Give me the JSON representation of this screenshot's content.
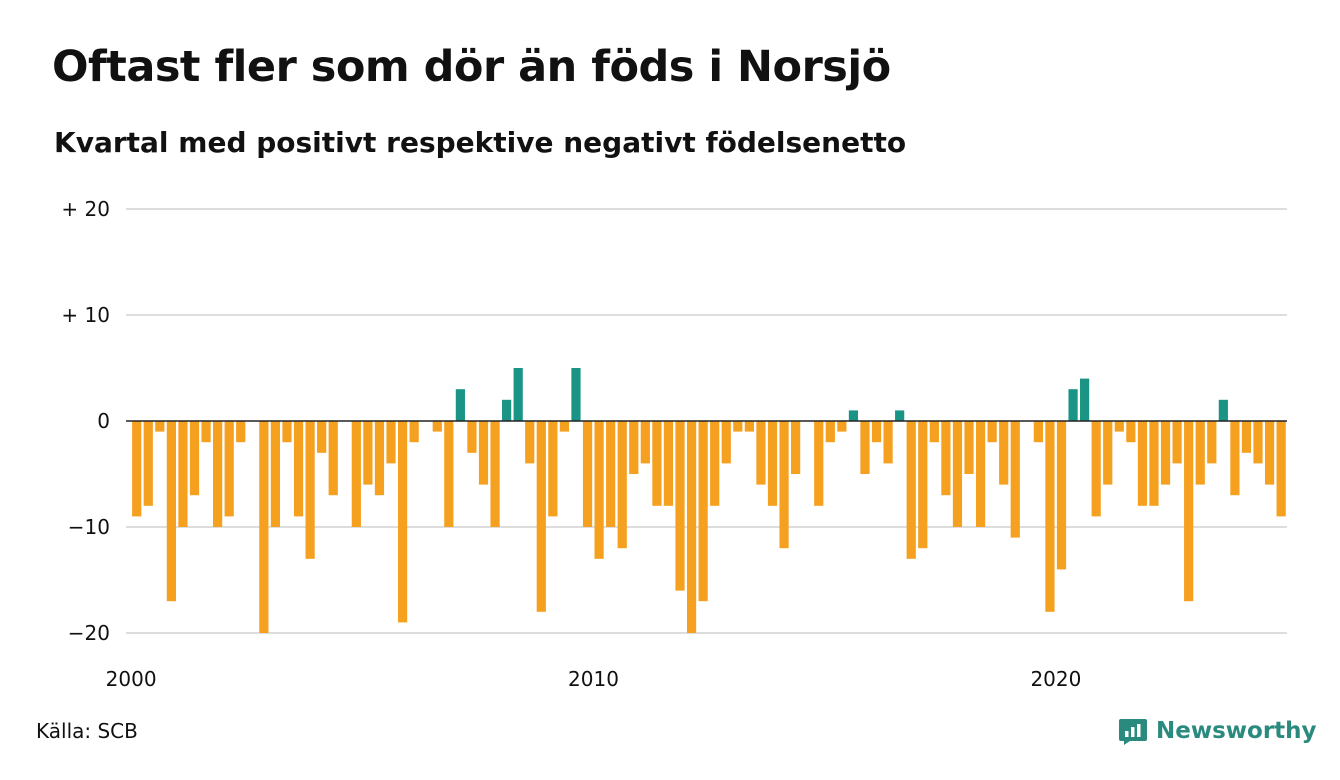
{
  "header": {
    "title": "Oftast fler som dör än föds i Norsjö",
    "subtitle": "Kvartal med positivt respektive negativt födelsenetto"
  },
  "footer": {
    "source": "Källa: SCB",
    "brand": "Newsworthy",
    "brand_icon": "newsworthy-logo-icon"
  },
  "colors": {
    "positive": "#1a9485",
    "negative": "#f5a01e",
    "grid": "#dddddd",
    "zero_line": "#222222",
    "brand": "#2a8a7e"
  },
  "chart_data": {
    "type": "bar",
    "title": "Oftast fler som dör än föds i Norsjö",
    "subtitle": "Kvartal med positivt respektive negativt födelsenetto",
    "x_start": "2000 Q1",
    "x_end": "2024 Q4",
    "x_tick_labels": [
      "2000",
      "2010",
      "2020"
    ],
    "y_ticks": [
      20,
      10,
      0,
      -10,
      -20
    ],
    "y_tick_labels": [
      "+ 20",
      "+ 10",
      "0",
      "−10",
      "−20"
    ],
    "ylim": [
      -20,
      20
    ],
    "grid": true,
    "values": [
      -9,
      -8,
      -1,
      -17,
      -10,
      -7,
      -2,
      -10,
      -9,
      -2,
      0,
      -20,
      -10,
      -2,
      -9,
      -13,
      -3,
      -7,
      0,
      -10,
      -6,
      -7,
      -4,
      -19,
      -2,
      0,
      -1,
      -10,
      3,
      -3,
      -6,
      -10,
      2,
      5,
      -4,
      -18,
      -9,
      -1,
      5,
      -10,
      -13,
      -10,
      -12,
      -5,
      -4,
      -8,
      -8,
      -16,
      -20,
      -17,
      -8,
      -4,
      -1,
      -1,
      -6,
      -8,
      -12,
      -5,
      0,
      -8,
      -2,
      -1,
      1,
      -5,
      -2,
      -4,
      1,
      -13,
      -12,
      -2,
      -7,
      -10,
      -5,
      -10,
      -2,
      -6,
      -11,
      0,
      -2,
      -18,
      -14,
      3,
      4,
      -9,
      -6,
      -1,
      -2,
      -8,
      -8,
      -6,
      -4,
      -17,
      -6,
      -4,
      2,
      -7,
      -3,
      -4,
      -6,
      -9
    ]
  }
}
